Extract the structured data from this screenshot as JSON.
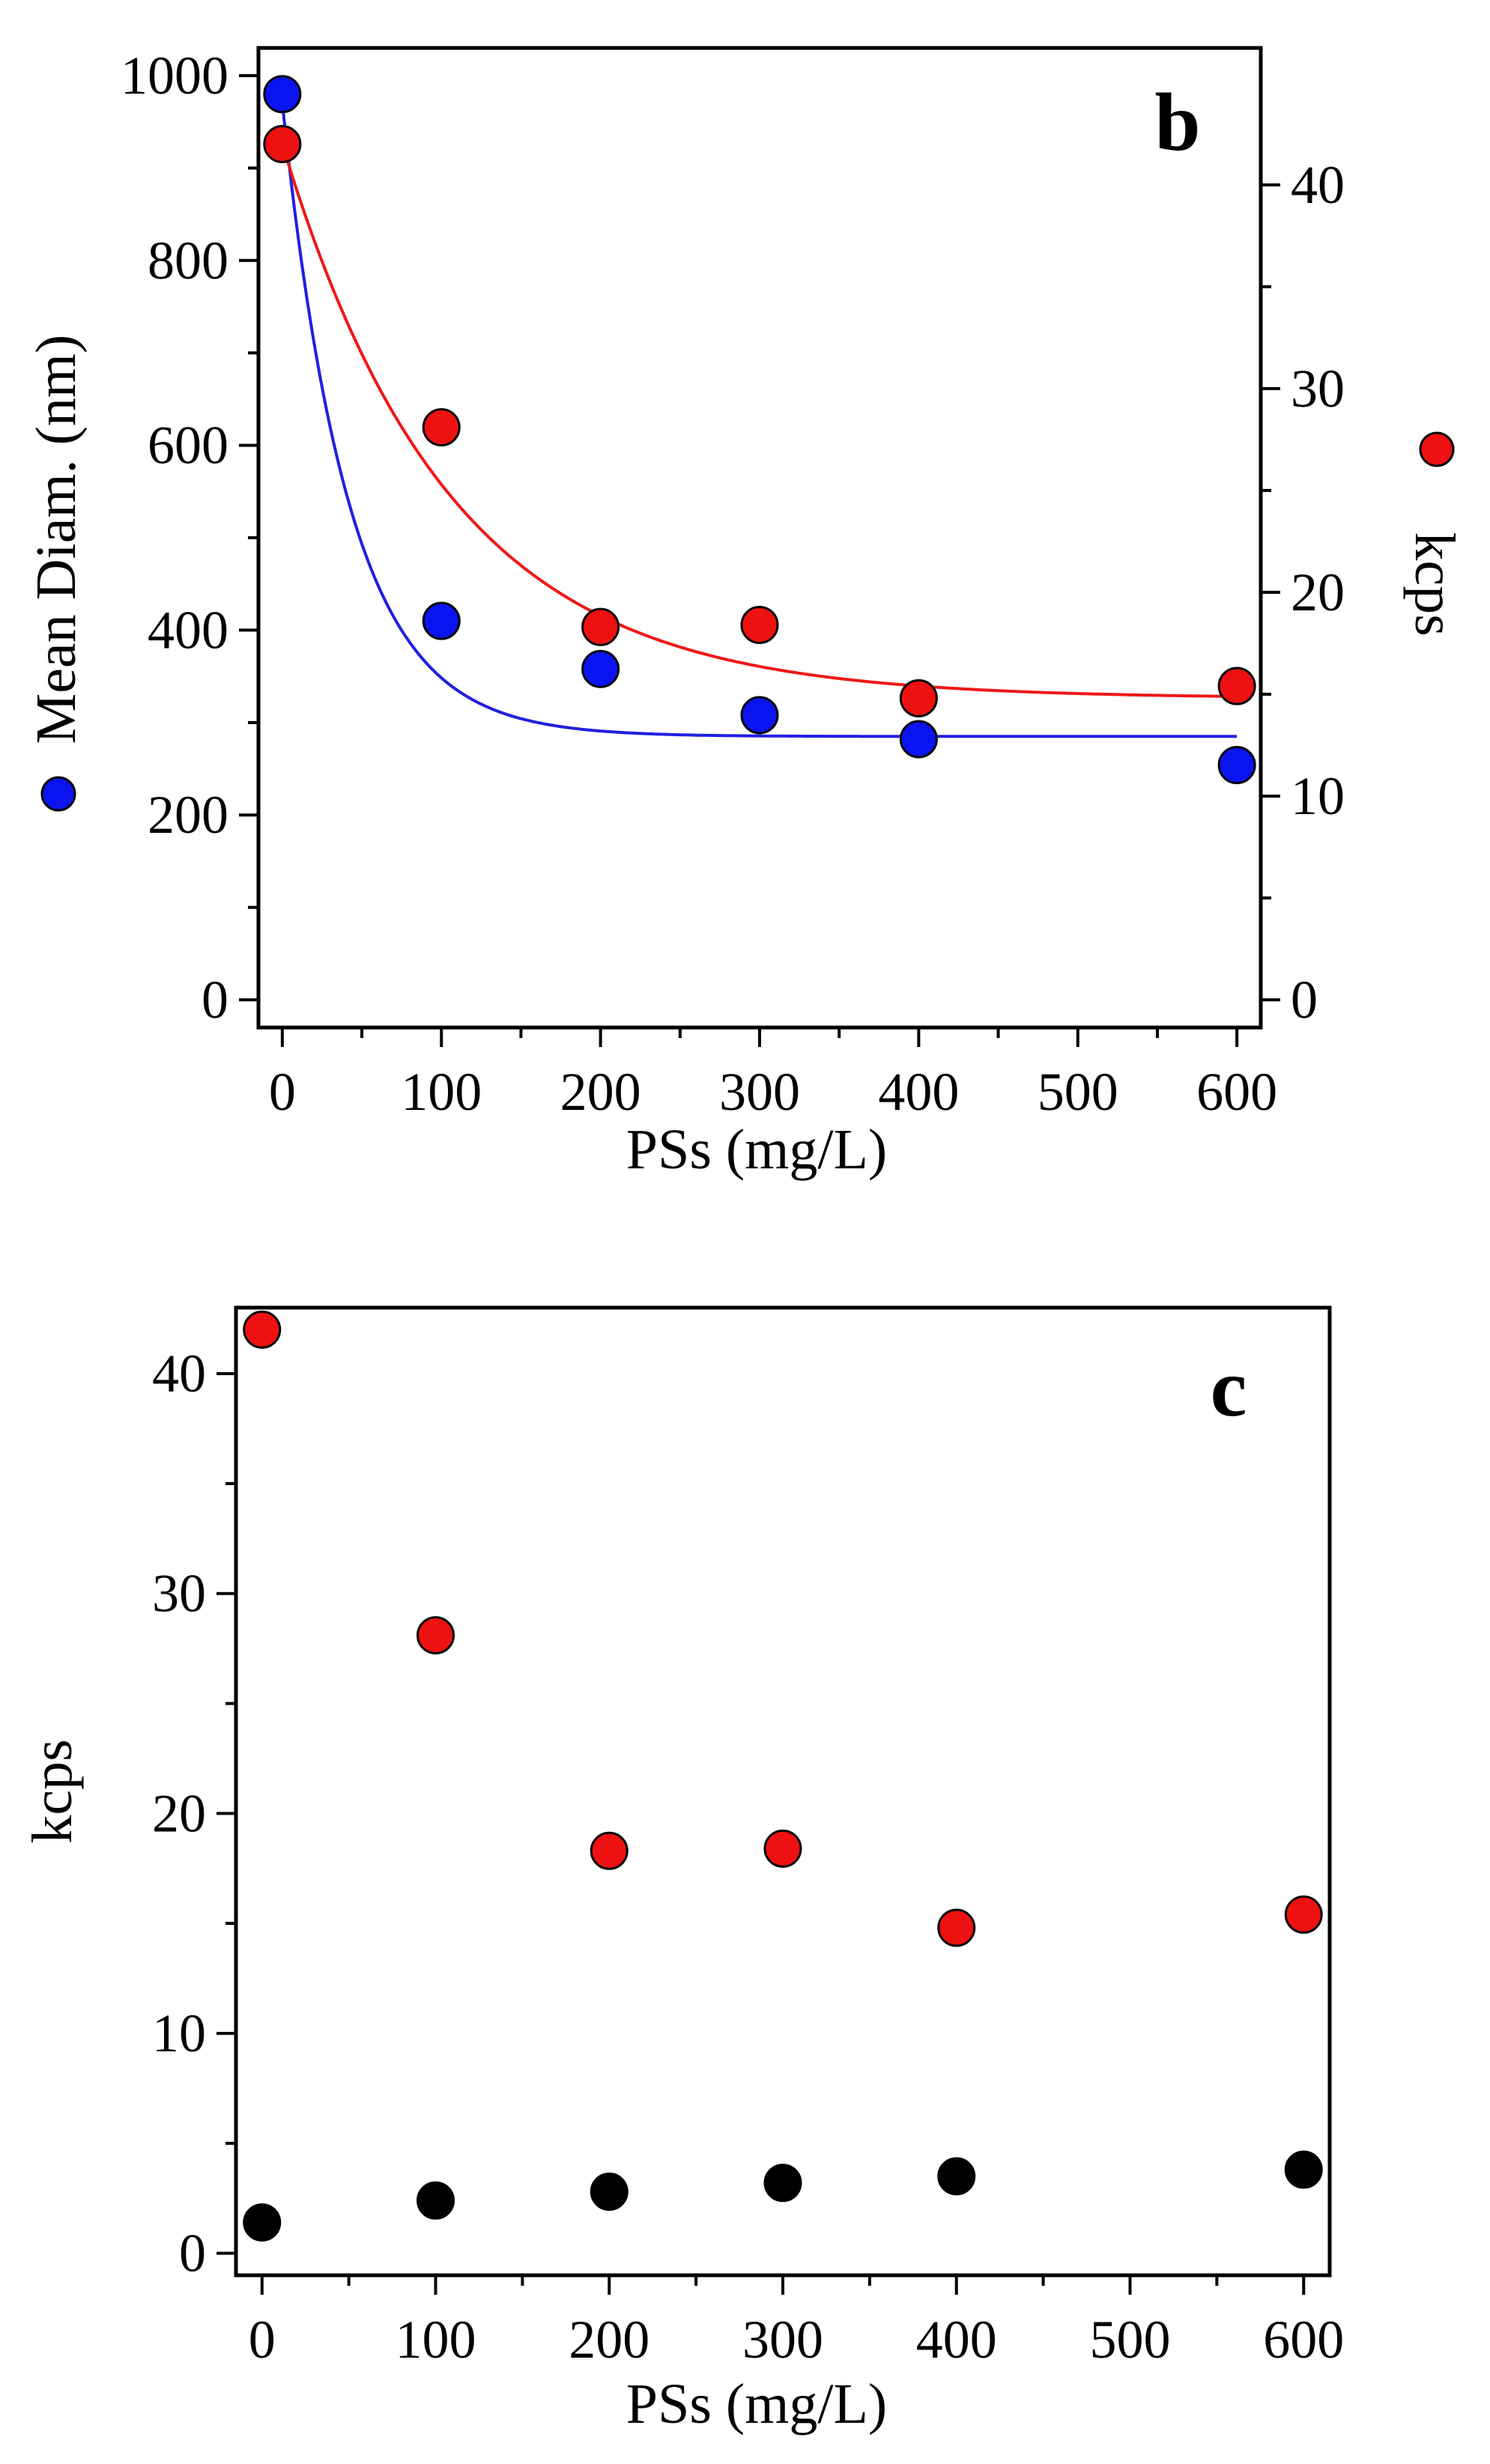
{
  "chart_data": [
    {
      "type": "scatter",
      "panel_label": "b",
      "xlabel": "PSs (mg/L)",
      "ylabel": "Mean Diam. (nm)",
      "ylabel_right": "kcps",
      "xlim": [
        -15,
        615
      ],
      "ylim": [
        -30,
        1030
      ],
      "ylim_right": [
        -1.36,
        46.72
      ],
      "xticks": [
        0,
        100,
        200,
        300,
        400,
        500,
        600
      ],
      "yticks": [
        0,
        200,
        400,
        600,
        800,
        1000
      ],
      "yticks_right": [
        0,
        10,
        20,
        30,
        40
      ],
      "grid": false,
      "series": [
        {
          "name": "Mean Diam.",
          "axis": "left",
          "color": "#0a14f0",
          "marker": "circle",
          "x": [
            0,
            100,
            200,
            300,
            400,
            600
          ],
          "y": [
            980,
            410,
            358,
            308,
            282,
            254
          ],
          "fit": {
            "type": "exponential_decay",
            "y0": 285,
            "A": 685,
            "t": 42,
            "color": "#2020e0"
          }
        },
        {
          "name": "kcps",
          "axis": "right",
          "color": "#ee1111",
          "marker": "circle",
          "x": [
            0,
            100,
            200,
            300,
            400,
            600
          ],
          "y": [
            42,
            28.1,
            18.3,
            18.4,
            14.8,
            15.4
          ],
          "fit": {
            "type": "exponential_decay",
            "y0": 14.8,
            "A": 27.2,
            "t": 105,
            "color": "#ee1818"
          }
        }
      ]
    },
    {
      "type": "scatter",
      "panel_label": "c",
      "xlabel": "PSs (mg/L)",
      "ylabel": "kcps",
      "xlim": [
        -15,
        615
      ],
      "ylim": [
        -1,
        43
      ],
      "xticks": [
        0,
        100,
        200,
        300,
        400,
        500,
        600
      ],
      "yticks": [
        0,
        10,
        20,
        30,
        40
      ],
      "grid": false,
      "series": [
        {
          "name": "red",
          "color": "#ee1111",
          "marker": "circle",
          "x": [
            0,
            100,
            200,
            300,
            400,
            600
          ],
          "y": [
            42,
            28.1,
            18.3,
            18.4,
            14.8,
            15.4
          ]
        },
        {
          "name": "black",
          "color": "#000000",
          "marker": "circle",
          "x": [
            0,
            100,
            200,
            300,
            400,
            600
          ],
          "y": [
            1.4,
            2.4,
            2.8,
            3.2,
            3.5,
            3.8
          ]
        }
      ]
    }
  ]
}
